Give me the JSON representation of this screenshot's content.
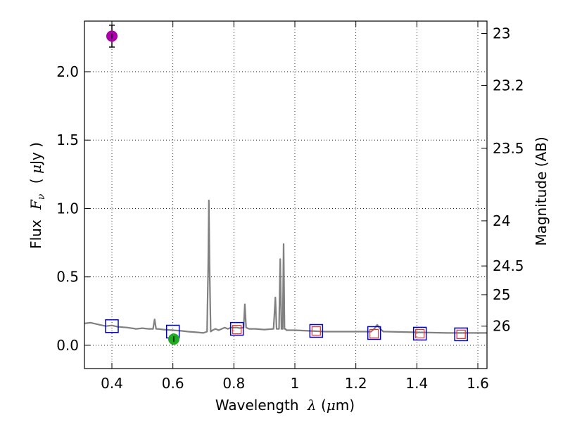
{
  "chart_data": {
    "type": "scatter",
    "xlabel": {
      "prefix": "Wavelength",
      "symbol": "λ",
      "unit_open": " (",
      "unit_mu": "μ",
      "unit_rest": "m)"
    },
    "ylabel": {
      "prefix": "Flux",
      "symbol_main": "F",
      "symbol_sub": "ν",
      "unit_open": "( ",
      "unit_mu": "μ",
      "unit_rest": "Jy )"
    },
    "y2label": "Magnitude (AB)",
    "xlim": [
      0.31,
      1.63
    ],
    "ylim": [
      -0.17,
      2.37
    ],
    "grid": true,
    "xticks": [
      {
        "v": 0.4,
        "t": "0.4"
      },
      {
        "v": 0.6,
        "t": "0.6"
      },
      {
        "v": 0.8,
        "t": "0.8"
      },
      {
        "v": 1.0,
        "t": "1"
      },
      {
        "v": 1.2,
        "t": "1.2"
      },
      {
        "v": 1.4,
        "t": "1.4"
      },
      {
        "v": 1.6,
        "t": "1.6"
      }
    ],
    "yticks": [
      {
        "v": 0.0,
        "t": "0.0"
      },
      {
        "v": 0.5,
        "t": "0.5"
      },
      {
        "v": 1.0,
        "t": "1.0"
      },
      {
        "v": 1.5,
        "t": "1.5"
      },
      {
        "v": 2.0,
        "t": "2.0"
      }
    ],
    "y2ticks": [
      {
        "v": 2.28,
        "t": "23"
      },
      {
        "v": 1.9,
        "t": "23.2"
      },
      {
        "v": 1.44,
        "t": "23.5"
      },
      {
        "v": 0.91,
        "t": "24"
      },
      {
        "v": 0.58,
        "t": "24.5"
      },
      {
        "v": 0.37,
        "t": "25"
      },
      {
        "v": 0.14,
        "t": "26"
      }
    ],
    "series": [
      {
        "kind": "model_sed",
        "color": "#808080",
        "x": [
          0.31,
          0.33,
          0.36,
          0.38,
          0.4,
          0.42,
          0.45,
          0.48,
          0.5,
          0.52,
          0.535,
          0.54,
          0.545,
          0.55,
          0.57,
          0.6,
          0.63,
          0.65,
          0.68,
          0.7,
          0.712,
          0.716,
          0.718,
          0.72,
          0.724,
          0.73,
          0.74,
          0.75,
          0.76,
          0.77,
          0.78,
          0.79,
          0.8,
          0.81,
          0.82,
          0.832,
          0.836,
          0.84,
          0.85,
          0.87,
          0.9,
          0.93,
          0.936,
          0.94,
          0.944,
          0.948,
          0.952,
          0.956,
          0.96,
          0.963,
          0.966,
          0.969,
          0.972,
          0.98,
          1.0,
          1.05,
          1.1,
          1.15,
          1.2,
          1.25,
          1.26,
          1.27,
          1.28,
          1.29,
          1.3,
          1.4,
          1.5,
          1.63
        ],
        "y": [
          0.16,
          0.165,
          0.15,
          0.14,
          0.145,
          0.135,
          0.13,
          0.12,
          0.125,
          0.12,
          0.12,
          0.19,
          0.12,
          0.12,
          0.115,
          0.11,
          0.105,
          0.1,
          0.095,
          0.09,
          0.1,
          0.6,
          1.06,
          0.6,
          0.1,
          0.11,
          0.12,
          0.11,
          0.12,
          0.13,
          0.12,
          0.13,
          0.13,
          0.13,
          0.125,
          0.13,
          0.3,
          0.13,
          0.12,
          0.12,
          0.115,
          0.12,
          0.35,
          0.12,
          0.12,
          0.12,
          0.63,
          0.12,
          0.12,
          0.74,
          0.12,
          0.12,
          0.11,
          0.11,
          0.11,
          0.105,
          0.1,
          0.1,
          0.1,
          0.1,
          0.12,
          0.15,
          0.12,
          0.1,
          0.1,
          0.095,
          0.09,
          0.09
        ]
      },
      {
        "kind": "model_photometry",
        "color": "#0000cc",
        "x": [
          0.4,
          0.6,
          0.81,
          1.07,
          1.26,
          1.41,
          1.545
        ],
        "y": [
          0.14,
          0.1,
          0.12,
          0.105,
          0.09,
          0.085,
          0.08
        ]
      },
      {
        "kind": "observed_photometry_nir",
        "color": "#e03030",
        "x": [
          0.81,
          1.07,
          1.26,
          1.41,
          1.545
        ],
        "y": [
          0.115,
          0.105,
          0.085,
          0.085,
          0.08
        ]
      },
      {
        "kind": "observed_detection",
        "color": "#aa00aa",
        "x": [
          0.4
        ],
        "y": [
          2.26
        ],
        "yerr": [
          0.08
        ]
      },
      {
        "kind": "observed_detection",
        "color": "#22aa22",
        "x": [
          0.603
        ],
        "y": [
          0.045
        ],
        "yerr": [
          0.02
        ]
      }
    ]
  }
}
